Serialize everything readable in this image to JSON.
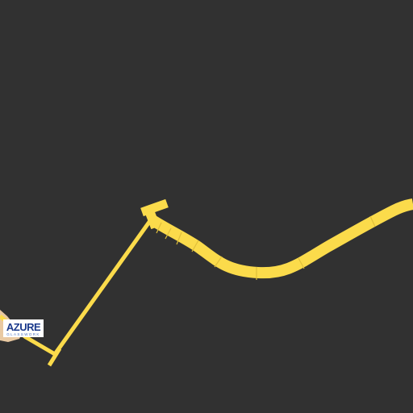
{
  "map": {
    "background_color": "#313131",
    "route_color": "#fbdb4b",
    "route_segment_color": "#e8c63c",
    "sand_color": "#e9c9a2"
  },
  "logo": {
    "name": "AZURE",
    "tagline": "GLASSWORK",
    "text_color": "#1b3a8c",
    "tagline_color": "#4a70c0",
    "background_color": "#ffffff"
  }
}
